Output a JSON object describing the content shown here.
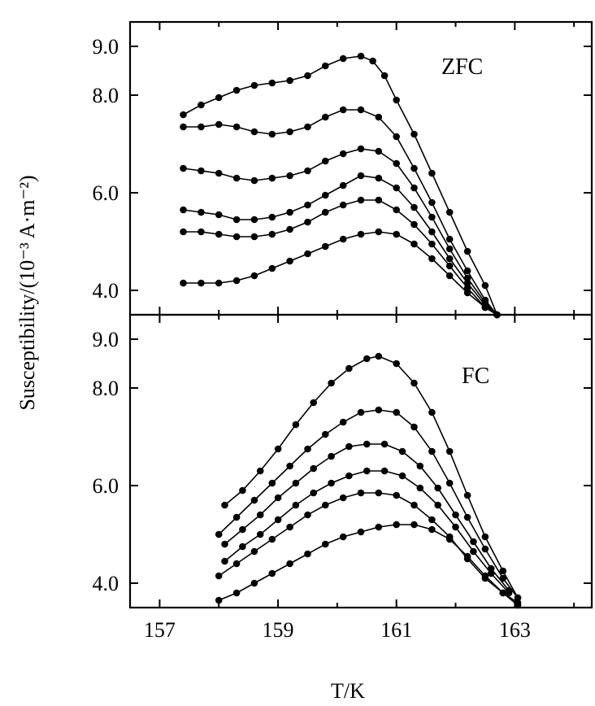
{
  "chart_data": [
    {
      "type": "line",
      "panel_label": "ZFC",
      "ylabel": "Susceptibility/(10⁻³ A·m⁻²)",
      "ylim": [
        3.5,
        9.5
      ],
      "xlim": [
        156.5,
        164.3
      ],
      "yticks": [
        4.0,
        6.0,
        8.0,
        9.0
      ],
      "ytick_labels": [
        "4.0",
        "6.0",
        "8.0",
        "9.0"
      ],
      "grid": false,
      "series": [
        {
          "x": [
            157.4,
            157.7,
            158.0,
            158.3,
            158.6,
            158.9,
            159.2,
            159.5,
            159.8,
            160.1,
            160.4,
            160.6,
            160.8,
            161.0,
            161.3,
            161.6,
            161.9,
            162.2,
            162.5,
            162.7
          ],
          "y": [
            7.6,
            7.8,
            7.95,
            8.1,
            8.2,
            8.25,
            8.3,
            8.4,
            8.6,
            8.75,
            8.8,
            8.7,
            8.4,
            7.9,
            7.2,
            6.4,
            5.6,
            4.8,
            4.1,
            3.5
          ]
        },
        {
          "x": [
            157.4,
            157.7,
            158.0,
            158.3,
            158.6,
            158.9,
            159.2,
            159.5,
            159.8,
            160.1,
            160.4,
            160.7,
            161.0,
            161.3,
            161.6,
            161.9,
            162.2,
            162.5,
            162.7
          ],
          "y": [
            7.35,
            7.35,
            7.4,
            7.35,
            7.25,
            7.2,
            7.25,
            7.35,
            7.55,
            7.7,
            7.7,
            7.55,
            7.15,
            6.5,
            5.8,
            5.05,
            4.4,
            3.8,
            3.5
          ]
        },
        {
          "x": [
            157.4,
            157.7,
            158.0,
            158.3,
            158.6,
            158.9,
            159.2,
            159.5,
            159.8,
            160.1,
            160.4,
            160.7,
            161.0,
            161.3,
            161.6,
            161.9,
            162.2,
            162.5,
            162.7
          ],
          "y": [
            6.5,
            6.45,
            6.4,
            6.3,
            6.25,
            6.3,
            6.35,
            6.45,
            6.65,
            6.8,
            6.9,
            6.85,
            6.6,
            6.1,
            5.5,
            4.85,
            4.25,
            3.75,
            3.5
          ]
        },
        {
          "x": [
            157.4,
            157.7,
            158.0,
            158.3,
            158.6,
            158.9,
            159.2,
            159.5,
            159.8,
            160.1,
            160.4,
            160.7,
            161.0,
            161.3,
            161.6,
            161.9,
            162.2,
            162.5,
            162.7
          ],
          "y": [
            5.65,
            5.6,
            5.55,
            5.45,
            5.45,
            5.5,
            5.6,
            5.75,
            5.95,
            6.15,
            6.35,
            6.3,
            6.1,
            5.7,
            5.2,
            4.65,
            4.15,
            3.7,
            3.5
          ]
        },
        {
          "x": [
            157.4,
            157.7,
            158.0,
            158.3,
            158.6,
            158.9,
            159.2,
            159.5,
            159.8,
            160.1,
            160.4,
            160.7,
            161.0,
            161.3,
            161.6,
            161.9,
            162.2,
            162.5,
            162.7
          ],
          "y": [
            5.2,
            5.2,
            5.15,
            5.1,
            5.1,
            5.15,
            5.25,
            5.4,
            5.6,
            5.75,
            5.85,
            5.85,
            5.65,
            5.35,
            4.95,
            4.5,
            4.05,
            3.65,
            3.5
          ]
        },
        {
          "x": [
            157.4,
            157.7,
            158.0,
            158.3,
            158.6,
            158.9,
            159.2,
            159.5,
            159.8,
            160.1,
            160.4,
            160.7,
            161.0,
            161.3,
            161.6,
            161.9,
            162.2,
            162.5,
            162.7
          ],
          "y": [
            4.15,
            4.15,
            4.15,
            4.2,
            4.3,
            4.45,
            4.6,
            4.75,
            4.9,
            5.05,
            5.15,
            5.2,
            5.15,
            4.95,
            4.65,
            4.3,
            3.95,
            3.65,
            3.5
          ]
        }
      ]
    },
    {
      "type": "line",
      "panel_label": "FC",
      "xlabel": "T/K",
      "ylim": [
        3.5,
        9.5
      ],
      "xlim": [
        156.5,
        164.3
      ],
      "xticks": [
        157,
        159,
        161,
        163
      ],
      "xtick_labels": [
        "157",
        "159",
        "161",
        "163"
      ],
      "yticks": [
        4.0,
        6.0,
        8.0,
        9.0
      ],
      "ytick_labels": [
        "4.0",
        "6.0",
        "8.0",
        "9.0"
      ],
      "grid": false,
      "series": [
        {
          "x": [
            158.1,
            158.4,
            158.7,
            159.0,
            159.3,
            159.6,
            159.9,
            160.2,
            160.5,
            160.7,
            161.0,
            161.3,
            161.6,
            161.9,
            162.2,
            162.5,
            162.8,
            163.05
          ],
          "y": [
            5.6,
            5.9,
            6.3,
            6.75,
            7.25,
            7.7,
            8.1,
            8.4,
            8.6,
            8.65,
            8.5,
            8.1,
            7.5,
            6.7,
            5.8,
            4.95,
            4.25,
            3.7
          ]
        },
        {
          "x": [
            158.0,
            158.3,
            158.6,
            158.9,
            159.2,
            159.5,
            159.8,
            160.1,
            160.4,
            160.7,
            161.0,
            161.3,
            161.6,
            161.9,
            162.2,
            162.5,
            162.8,
            163.05
          ],
          "y": [
            5.0,
            5.35,
            5.7,
            6.05,
            6.4,
            6.75,
            7.05,
            7.3,
            7.5,
            7.55,
            7.5,
            7.2,
            6.7,
            6.05,
            5.35,
            4.7,
            4.1,
            3.7
          ]
        },
        {
          "x": [
            158.1,
            158.4,
            158.7,
            159.0,
            159.3,
            159.6,
            159.9,
            160.2,
            160.5,
            160.8,
            161.1,
            161.4,
            161.7,
            162.0,
            162.3,
            162.6,
            162.9
          ],
          "y": [
            4.8,
            5.1,
            5.4,
            5.75,
            6.05,
            6.35,
            6.6,
            6.8,
            6.85,
            6.85,
            6.7,
            6.4,
            5.95,
            5.4,
            4.85,
            4.3,
            3.85
          ]
        },
        {
          "x": [
            158.1,
            158.4,
            158.7,
            159.0,
            159.3,
            159.6,
            159.9,
            160.2,
            160.5,
            160.8,
            161.1,
            161.4,
            161.7,
            162.0,
            162.3,
            162.6,
            162.9
          ],
          "y": [
            4.45,
            4.75,
            5.0,
            5.3,
            5.6,
            5.85,
            6.05,
            6.2,
            6.3,
            6.3,
            6.2,
            5.95,
            5.6,
            5.15,
            4.65,
            4.2,
            3.8
          ]
        },
        {
          "x": [
            158.0,
            158.3,
            158.6,
            158.9,
            159.2,
            159.5,
            159.8,
            160.1,
            160.4,
            160.7,
            161.0,
            161.3,
            161.6,
            161.9,
            162.2,
            162.5,
            162.8,
            163.05
          ],
          "y": [
            4.15,
            4.4,
            4.65,
            4.9,
            5.15,
            5.4,
            5.6,
            5.75,
            5.85,
            5.85,
            5.8,
            5.6,
            5.3,
            4.95,
            4.5,
            4.1,
            3.8,
            3.6
          ]
        },
        {
          "x": [
            158.0,
            158.3,
            158.6,
            158.9,
            159.2,
            159.5,
            159.8,
            160.1,
            160.4,
            160.7,
            161.0,
            161.3,
            161.6,
            161.9,
            162.2,
            162.5,
            162.8,
            163.05
          ],
          "y": [
            3.65,
            3.8,
            4.0,
            4.2,
            4.4,
            4.6,
            4.8,
            4.95,
            5.05,
            5.15,
            5.2,
            5.2,
            5.1,
            4.9,
            4.55,
            4.15,
            3.8,
            3.55
          ]
        }
      ]
    }
  ]
}
